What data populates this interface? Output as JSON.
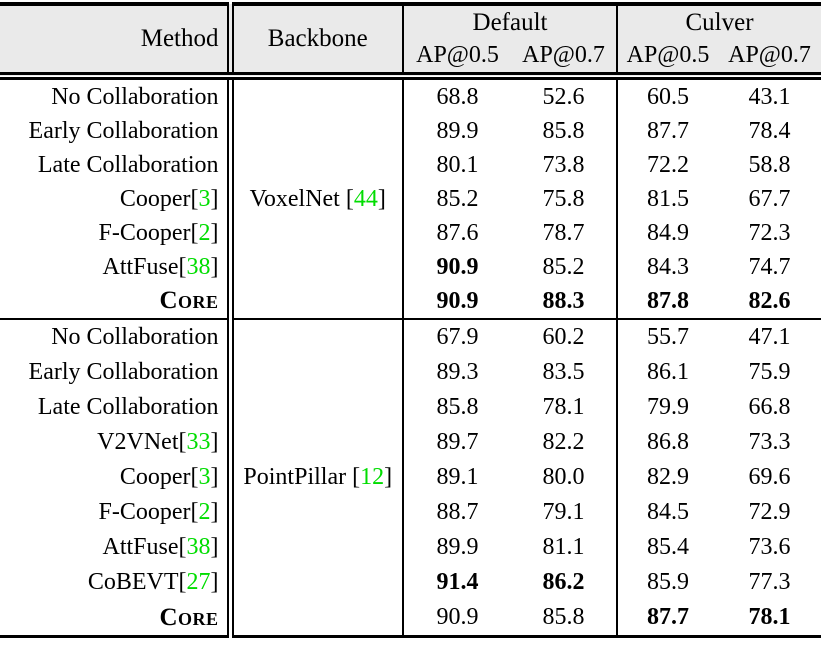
{
  "colors": {
    "citation_green": "#00DD00",
    "header_background": "#EAEAEA",
    "rule_black": "#000000"
  },
  "punct": {
    "open_bracket": "[",
    "close_bracket": "]"
  },
  "header": {
    "method": "Method",
    "backbone": "Backbone",
    "groups": [
      {
        "label": "Default",
        "sub": [
          "AP@0.5",
          "AP@0.7"
        ]
      },
      {
        "label": "Culver",
        "sub": [
          "AP@0.5",
          "AP@0.7"
        ]
      }
    ]
  },
  "blocks": [
    {
      "backbone": {
        "name": "VoxelNet",
        "cite": "44"
      },
      "rows": [
        {
          "method": "No Collaboration",
          "values": [
            "68.8",
            "52.6",
            "60.5",
            "43.1"
          ]
        },
        {
          "method": "Early Collaboration",
          "values": [
            "89.9",
            "85.8",
            "87.7",
            "78.4"
          ]
        },
        {
          "method": "Late Collaboration",
          "values": [
            "80.1",
            "73.8",
            "72.2",
            "58.8"
          ]
        },
        {
          "method": "Cooper",
          "cite": "3",
          "values": [
            "85.2",
            "75.8",
            "81.5",
            "67.7"
          ]
        },
        {
          "method": "F-Cooper",
          "cite": "2",
          "values": [
            "87.6",
            "78.7",
            "84.9",
            "72.3"
          ]
        },
        {
          "method": "AttFuse",
          "cite": "38",
          "values": [
            "90.9",
            "85.2",
            "84.3",
            "74.7"
          ]
        },
        {
          "method": "Core",
          "values": [
            "90.9",
            "88.3",
            "87.8",
            "82.6"
          ]
        }
      ]
    },
    {
      "backbone": {
        "name": "PointPillar",
        "cite": "12"
      },
      "rows": [
        {
          "method": "No Collaboration",
          "values": [
            "67.9",
            "60.2",
            "55.7",
            "47.1"
          ]
        },
        {
          "method": "Early Collaboration",
          "values": [
            "89.3",
            "83.5",
            "86.1",
            "75.9"
          ]
        },
        {
          "method": "Late Collaboration",
          "values": [
            "85.8",
            "78.1",
            "79.9",
            "66.8"
          ]
        },
        {
          "method": "V2VNet",
          "cite": "33",
          "values": [
            "89.7",
            "82.2",
            "86.8",
            "73.3"
          ]
        },
        {
          "method": "Cooper",
          "cite": "3",
          "values": [
            "89.1",
            "80.0",
            "82.9",
            "69.6"
          ]
        },
        {
          "method": "F-Cooper",
          "cite": "2",
          "values": [
            "88.7",
            "79.1",
            "84.5",
            "72.9"
          ]
        },
        {
          "method": "AttFuse",
          "cite": "38",
          "values": [
            "89.9",
            "81.1",
            "85.4",
            "73.6"
          ]
        },
        {
          "method": "CoBEVT",
          "cite": "27",
          "values": [
            "91.4",
            "86.2",
            "85.9",
            "77.3"
          ]
        },
        {
          "method": "Core",
          "values": [
            "90.9",
            "85.8",
            "87.7",
            "78.1"
          ]
        }
      ]
    }
  ]
}
